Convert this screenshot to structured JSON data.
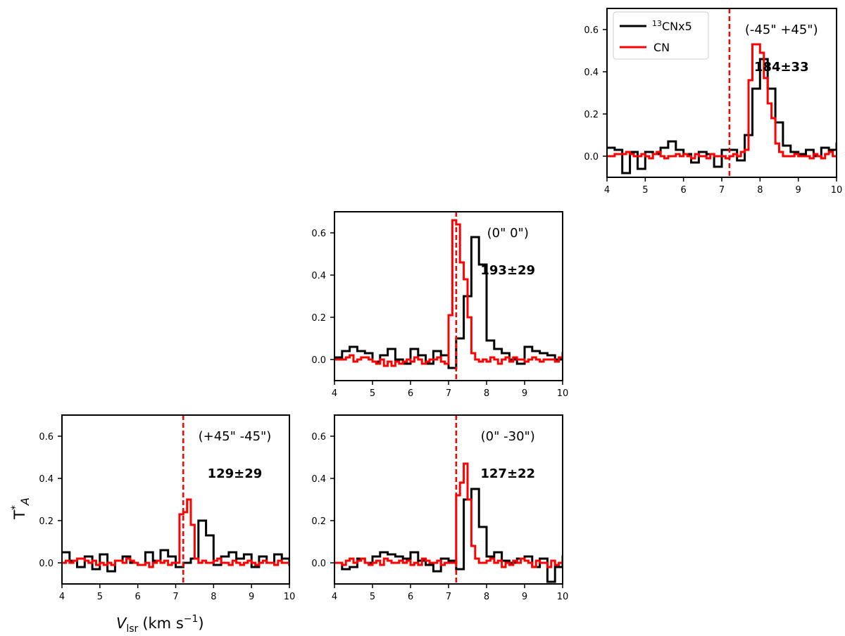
{
  "colors": {
    "c13n": "#000000",
    "cn": "#ff0000",
    "vline": "#ff0000"
  },
  "legend": {
    "entries": [
      {
        "sup": "13",
        "label": "CNx5",
        "color": "#000000"
      },
      {
        "sup": "",
        "label": "CN",
        "color": "#ff0000"
      }
    ]
  },
  "xlabel": {
    "main": "V",
    "sub": "lsr",
    "unit": "(km s",
    "exp": "−1",
    "close": ")"
  },
  "ylabel": {
    "main": "T",
    "sup": "*",
    "sub": "A"
  },
  "chart_data": [
    {
      "type": "line",
      "panel": "top-right",
      "position_label": "(-45\" +45\")",
      "ratio_label": "184±33",
      "xlim": [
        4,
        10
      ],
      "ylim": [
        -0.1,
        0.7
      ],
      "xticks": [
        "4",
        "5",
        "6",
        "7",
        "8",
        "9",
        "10"
      ],
      "yticks": [
        "0.0",
        "0.2",
        "0.4",
        "0.6"
      ],
      "vline": 7.2,
      "series": [
        {
          "name": "13CNx5",
          "step": 0.2,
          "x0": 4.0,
          "values": [
            0.04,
            0.03,
            -0.08,
            0.02,
            -0.06,
            0.02,
            0.01,
            0.04,
            0.07,
            0.03,
            0.01,
            -0.03,
            0.02,
            0.01,
            -0.05,
            0.03,
            0.03,
            -0.02,
            0.1,
            0.32,
            0.46,
            0.32,
            0.16,
            0.05,
            0.02,
            0.01,
            0.03,
            0.0,
            0.04,
            0.03,
            0.06,
            0.08,
            0.07,
            -0.03,
            -0.04,
            -0.05,
            0.02,
            -0.02,
            0.01,
            -0.04
          ]
        },
        {
          "name": "CN",
          "step": 0.1,
          "x0": 4.0,
          "values": [
            0.0,
            0.0,
            0.01,
            0.01,
            0.01,
            0.02,
            0.01,
            0.0,
            0.0,
            0.01,
            0.0,
            -0.01,
            0.01,
            0.02,
            0.0,
            -0.01,
            0.0,
            0.0,
            0.01,
            0.0,
            0.01,
            0.0,
            -0.01,
            0.01,
            0.0,
            0.0,
            -0.01,
            0.01,
            0.0,
            0.0,
            0.0,
            -0.01,
            0.0,
            0.01,
            0.0,
            0.02,
            0.03,
            0.36,
            0.53,
            0.53,
            0.49,
            0.37,
            0.25,
            0.18,
            0.06,
            0.02,
            0.0,
            0.0,
            0.0,
            0.01,
            0.0,
            0.0,
            0.0,
            -0.01,
            0.01,
            0.0,
            -0.01,
            0.01,
            0.02,
            0.0
          ]
        }
      ]
    },
    {
      "type": "line",
      "panel": "middle",
      "position_label": "(0\" 0\")",
      "ratio_label": "193±29",
      "xlim": [
        4,
        10
      ],
      "ylim": [
        -0.1,
        0.7
      ],
      "xticks": [
        "4",
        "5",
        "6",
        "7",
        "8",
        "9",
        "10"
      ],
      "yticks": [
        "0.0",
        "0.2",
        "0.4",
        "0.6"
      ],
      "vline": 7.2,
      "series": [
        {
          "name": "13CNx5",
          "step": 0.2,
          "x0": 4.0,
          "values": [
            0.01,
            0.04,
            0.06,
            0.04,
            0.03,
            -0.01,
            0.02,
            0.05,
            0.0,
            -0.02,
            0.05,
            0.02,
            -0.02,
            0.04,
            0.02,
            -0.04,
            0.1,
            0.3,
            0.58,
            0.45,
            0.09,
            0.05,
            0.03,
            0.0,
            -0.02,
            0.06,
            0.04,
            0.03,
            0.02,
            0.0,
            0.03,
            -0.01,
            0.02,
            0.02,
            -0.04,
            -0.02,
            0.03,
            -0.03,
            -0.06,
            0.01
          ]
        },
        {
          "name": "CN",
          "step": 0.1,
          "x0": 4.0,
          "values": [
            0.0,
            0.0,
            0.0,
            0.01,
            0.02,
            -0.01,
            0.0,
            0.01,
            0.01,
            0.0,
            -0.01,
            -0.02,
            0.0,
            -0.03,
            -0.01,
            -0.03,
            -0.01,
            -0.02,
            -0.01,
            0.0,
            -0.01,
            0.01,
            0.0,
            -0.02,
            -0.01,
            0.0,
            0.0,
            0.01,
            -0.01,
            -0.02,
            0.21,
            0.66,
            0.64,
            0.46,
            0.38,
            0.2,
            0.03,
            0.0,
            -0.01,
            0.0,
            -0.01,
            0.01,
            0.0,
            -0.02,
            0.0,
            0.01,
            -0.01,
            0.01,
            0.0,
            0.0,
            -0.01,
            0.0,
            0.01,
            0.0,
            -0.01,
            0.0,
            0.0,
            0.0,
            -0.01,
            0.01
          ]
        }
      ]
    },
    {
      "type": "line",
      "panel": "bottom-left",
      "position_label": "(+45\" -45\")",
      "ratio_label": "129±29",
      "xlim": [
        4,
        10
      ],
      "ylim": [
        -0.1,
        0.7
      ],
      "xticks": [
        "4",
        "5",
        "6",
        "7",
        "8",
        "9",
        "10"
      ],
      "yticks": [
        "0.0",
        "0.2",
        "0.4",
        "0.6"
      ],
      "vline": 7.2,
      "series": [
        {
          "name": "13CNx5",
          "step": 0.2,
          "x0": 4.0,
          "values": [
            0.05,
            0.01,
            -0.02,
            0.03,
            -0.03,
            0.04,
            -0.04,
            0.01,
            0.03,
            0.0,
            -0.01,
            0.05,
            0.01,
            0.06,
            0.03,
            -0.02,
            0.0,
            0.02,
            0.2,
            0.13,
            -0.01,
            0.03,
            0.05,
            0.02,
            0.04,
            -0.02,
            0.03,
            0.0,
            0.04,
            0.02,
            -0.01,
            0.03,
            0.01,
            0.07,
            0.02,
            0.04,
            -0.02,
            -0.02,
            -0.03,
            -0.06
          ]
        },
        {
          "name": "CN",
          "step": 0.1,
          "x0": 4.0,
          "values": [
            0.0,
            0.01,
            0.0,
            0.01,
            0.02,
            0.02,
            0.01,
            0.0,
            0.01,
            -0.01,
            0.0,
            -0.01,
            0.0,
            -0.01,
            0.01,
            0.01,
            0.0,
            0.02,
            0.01,
            0.0,
            -0.01,
            -0.01,
            0.0,
            -0.02,
            0.0,
            0.01,
            0.0,
            0.01,
            -0.01,
            0.0,
            0.0,
            0.23,
            0.24,
            0.3,
            0.18,
            0.02,
            0.0,
            0.01,
            0.0,
            0.0,
            0.01,
            0.02,
            0.0,
            0.0,
            -0.01,
            0.01,
            0.0,
            -0.01,
            0.0,
            0.01,
            0.0,
            -0.01,
            0.0,
            0.01,
            0.0,
            0.0,
            -0.01,
            0.01,
            0.0,
            0.0
          ]
        }
      ]
    },
    {
      "type": "line",
      "panel": "bottom-right",
      "position_label": "(0\" -30\")",
      "ratio_label": "127±22",
      "xlim": [
        4,
        10
      ],
      "ylim": [
        -0.1,
        0.7
      ],
      "xticks": [
        "4",
        "5",
        "6",
        "7",
        "8",
        "9",
        "10"
      ],
      "yticks": [
        "0.0",
        "0.2",
        "0.4",
        "0.6"
      ],
      "vline": 7.2,
      "series": [
        {
          "name": "13CNx5",
          "step": 0.2,
          "x0": 4.0,
          "values": [
            0.0,
            -0.03,
            -0.02,
            0.02,
            0.0,
            0.03,
            0.05,
            0.04,
            0.03,
            0.02,
            0.05,
            0.01,
            -0.01,
            -0.04,
            0.02,
            0.01,
            -0.03,
            0.3,
            0.35,
            0.17,
            0.03,
            0.05,
            0.01,
            0.0,
            0.02,
            0.03,
            -0.02,
            0.02,
            -0.09,
            -0.02,
            0.03,
            0.01,
            0.01,
            0.03,
            -0.01,
            0.0,
            0.0,
            -0.03,
            -0.04,
            -0.07
          ]
        },
        {
          "name": "CN",
          "step": 0.1,
          "x0": 4.0,
          "values": [
            0.0,
            0.0,
            -0.01,
            0.01,
            0.02,
            0.0,
            0.01,
            0.02,
            0.0,
            -0.01,
            0.0,
            0.01,
            -0.01,
            0.02,
            0.01,
            0.0,
            0.0,
            0.01,
            0.0,
            0.01,
            -0.01,
            0.0,
            -0.01,
            0.02,
            0.01,
            0.0,
            0.0,
            0.01,
            -0.01,
            0.0,
            0.0,
            0.0,
            0.32,
            0.38,
            0.47,
            0.3,
            0.08,
            0.02,
            0.0,
            0.0,
            0.01,
            0.02,
            0.0,
            0.01,
            -0.02,
            0.0,
            -0.01,
            0.01,
            0.0,
            0.02,
            0.01,
            0.0,
            -0.02,
            0.01,
            0.0,
            0.0,
            -0.02,
            0.01,
            -0.01,
            0.0
          ]
        }
      ]
    }
  ]
}
